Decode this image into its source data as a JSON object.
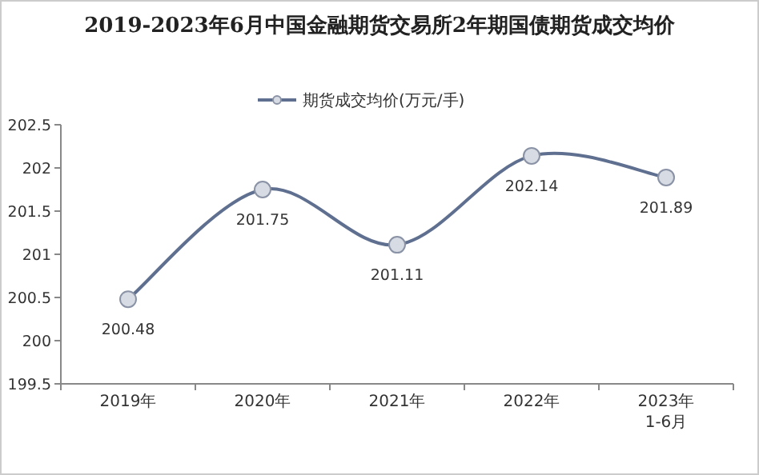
{
  "chart_data": {
    "type": "line",
    "title": "2019-2023年6月中国金融期货交易所2年期国债期货成交均价",
    "categories": [
      "2019年",
      "2020年",
      "2021年",
      "2022年",
      "2023年\n1-6月"
    ],
    "series": [
      {
        "name": "期货成交均价(万元/手)",
        "color": "#5f6f8f",
        "values": [
          200.48,
          201.75,
          201.11,
          202.14,
          201.89
        ]
      }
    ],
    "ylim": [
      199.5,
      202.5
    ],
    "yticks": [
      199.5,
      200,
      200.5,
      201,
      201.5,
      202,
      202.5
    ],
    "grid": false,
    "legend": "top",
    "marker": "circle",
    "line_style": "solid",
    "data_labels": true
  }
}
